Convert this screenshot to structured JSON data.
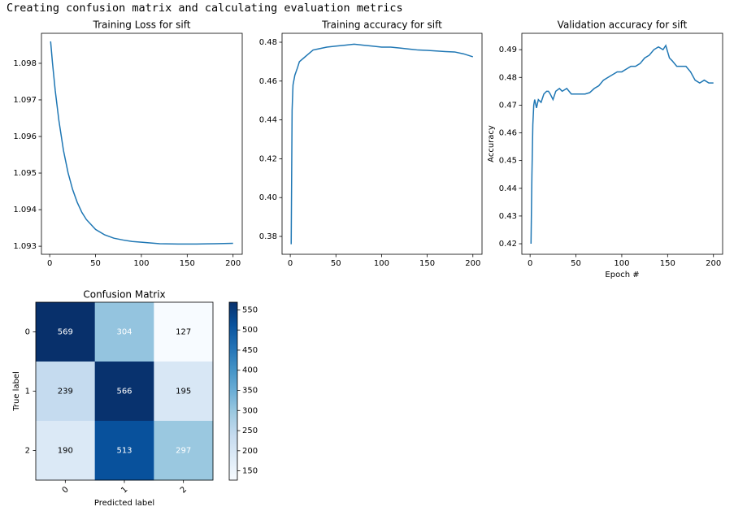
{
  "header": "Creating confusion matrix and calculating evaluation metrics",
  "chart_data": [
    {
      "type": "line",
      "title": "Training Loss for sift",
      "color": "#1f77b4",
      "x": [
        1,
        3,
        6,
        10,
        15,
        20,
        25,
        30,
        35,
        40,
        50,
        60,
        70,
        80,
        90,
        100,
        120,
        140,
        160,
        180,
        200
      ],
      "values": [
        1.0986,
        1.09802,
        1.09726,
        1.09644,
        1.09562,
        1.09501,
        1.09455,
        1.0942,
        1.09393,
        1.09373,
        1.09346,
        1.09331,
        1.09322,
        1.09317,
        1.09313,
        1.09311,
        1.09307,
        1.09306,
        1.09306,
        1.09307,
        1.09308
      ],
      "xlim": [
        -9,
        210
      ],
      "ylim": [
        1.09278,
        1.09882
      ],
      "xticks": [
        0,
        50,
        100,
        150,
        200
      ],
      "yticks": [
        1.093,
        1.094,
        1.095,
        1.096,
        1.097,
        1.098
      ]
    },
    {
      "type": "line",
      "title": "Training accuracy for sift",
      "color": "#1f77b4",
      "x": [
        1,
        2,
        3,
        5,
        8,
        10,
        15,
        20,
        25,
        30,
        40,
        50,
        60,
        70,
        80,
        90,
        100,
        110,
        120,
        130,
        140,
        150,
        160,
        170,
        180,
        190,
        200
      ],
      "values": [
        0.376,
        0.445,
        0.458,
        0.463,
        0.467,
        0.47,
        0.472,
        0.474,
        0.476,
        0.4765,
        0.4775,
        0.478,
        0.4785,
        0.479,
        0.4785,
        0.478,
        0.4775,
        0.4775,
        0.477,
        0.4765,
        0.476,
        0.4758,
        0.4755,
        0.4752,
        0.475,
        0.474,
        0.4725
      ],
      "xlim": [
        -9,
        210
      ],
      "ylim": [
        0.3708,
        0.4846
      ],
      "xticks": [
        0,
        50,
        100,
        150,
        200
      ],
      "yticks": [
        0.38,
        {
          "value": 0.4,
          "label": "0.40"
        },
        0.42,
        0.44,
        0.46,
        0.48
      ]
    },
    {
      "type": "line",
      "title": "Validation accuracy for sift",
      "xlabel": "Epoch #",
      "ylabel": "Accuracy",
      "color": "#1f77b4",
      "x": [
        1,
        2,
        3,
        4,
        5,
        7,
        9,
        12,
        15,
        18,
        20,
        22,
        25,
        28,
        32,
        35,
        40,
        45,
        50,
        55,
        60,
        65,
        70,
        75,
        80,
        85,
        90,
        95,
        100,
        105,
        110,
        115,
        120,
        125,
        130,
        135,
        140,
        145,
        148,
        152,
        155,
        160,
        165,
        170,
        175,
        180,
        185,
        190,
        195,
        200
      ],
      "values": [
        0.42,
        0.445,
        0.463,
        0.47,
        0.472,
        0.469,
        0.472,
        0.471,
        0.474,
        0.475,
        0.475,
        0.474,
        0.472,
        0.475,
        0.476,
        0.475,
        0.476,
        0.474,
        0.474,
        0.474,
        0.474,
        0.4745,
        0.476,
        0.477,
        0.479,
        0.48,
        0.481,
        0.482,
        0.482,
        0.483,
        0.484,
        0.484,
        0.485,
        0.487,
        0.488,
        0.49,
        0.491,
        0.49,
        0.4915,
        0.487,
        0.486,
        0.484,
        0.484,
        0.484,
        0.482,
        0.479,
        0.478,
        0.479,
        0.478,
        0.478
      ],
      "xlim": [
        -9,
        210
      ],
      "ylim": [
        0.4162,
        0.4959
      ],
      "xticks": [
        0,
        50,
        100,
        150,
        200
      ],
      "yticks": [
        0.42,
        0.43,
        0.44,
        0.45,
        0.46,
        0.47,
        0.48,
        0.49
      ]
    },
    {
      "type": "heatmap",
      "title": "Confusion Matrix",
      "xlabel": "Predicted label",
      "ylabel": "True label",
      "colormap": "Blues",
      "x_categories": [
        "0",
        "1",
        "2"
      ],
      "y_categories": [
        "0",
        "1",
        "2"
      ],
      "values": [
        [
          569,
          304,
          127
        ],
        [
          239,
          566,
          195
        ],
        [
          190,
          513,
          297
        ]
      ],
      "clim": [
        127,
        569
      ],
      "cticks": [
        150,
        200,
        250,
        300,
        350,
        400,
        450,
        500,
        550
      ]
    }
  ]
}
